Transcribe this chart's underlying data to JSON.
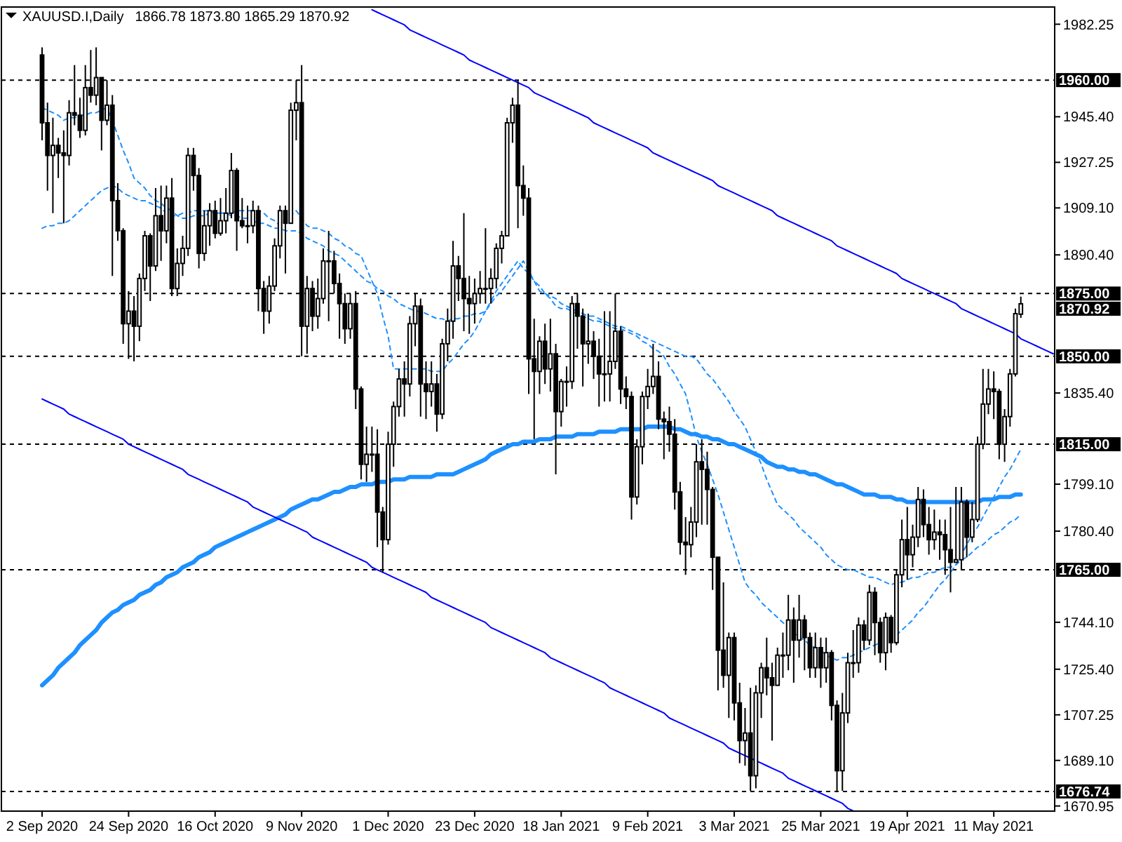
{
  "chart_data": {
    "type": "candlestick",
    "title": "XAUUSD.I,Daily",
    "subtitle": "1866.78 1873.80 1865.29 1870.92",
    "categories": [
      "2 Sep 2020",
      null,
      null,
      null,
      null,
      null,
      null,
      null,
      null,
      null,
      null,
      null,
      null,
      null,
      null,
      null,
      "24 Sep 2020",
      null,
      null,
      null,
      null,
      null,
      null,
      null,
      null,
      null,
      null,
      null,
      null,
      null,
      null,
      null,
      "16 Oct 2020",
      null,
      null,
      null,
      null,
      null,
      null,
      null,
      null,
      null,
      null,
      null,
      null,
      null,
      null,
      null,
      "9 Nov 2020",
      null,
      null,
      null,
      null,
      null,
      null,
      null,
      null,
      null,
      null,
      null,
      null,
      null,
      null,
      null,
      "1 Dec 2020",
      null,
      null,
      null,
      null,
      null,
      null,
      null,
      null,
      null,
      null,
      null,
      null,
      null,
      null,
      null,
      "23 Dec 2020",
      null,
      null,
      null,
      null,
      null,
      null,
      null,
      null,
      null,
      null,
      null,
      null,
      null,
      null,
      null,
      "18 Jan 2021",
      null,
      null,
      null,
      null,
      null,
      null,
      null,
      null,
      null,
      null,
      null,
      null,
      null,
      null,
      null,
      "9 Feb 2021",
      null,
      null,
      null,
      null,
      null,
      null,
      null,
      null,
      null,
      null,
      null,
      null,
      null,
      null,
      null,
      "3 Mar 2021",
      null,
      null,
      null,
      null,
      null,
      null,
      null,
      null,
      null,
      null,
      null,
      null,
      null,
      null,
      null,
      "25 Mar 2021",
      null,
      null,
      null,
      null,
      null,
      null,
      null,
      null,
      null,
      null,
      null,
      null,
      null,
      null,
      null,
      "19 Apr 2021",
      null,
      null,
      null,
      null,
      null,
      null,
      null,
      null,
      null,
      null,
      null,
      null,
      null,
      null,
      null,
      "11 May 2021",
      null,
      null,
      null,
      null,
      null,
      null,
      null,
      null,
      null,
      null,
      null
    ],
    "ohlc": [
      [
        1970,
        1973,
        1936,
        1943
      ],
      [
        1943,
        1951,
        1916,
        1930
      ],
      [
        1930,
        1945,
        1907,
        1934
      ],
      [
        1934,
        1937,
        1921,
        1931
      ],
      [
        1931,
        1940,
        1903,
        1930
      ],
      [
        1930,
        1952,
        1926,
        1947
      ],
      [
        1947,
        1966,
        1942,
        1946
      ],
      [
        1946,
        1953,
        1937,
        1940
      ],
      [
        1940,
        1966,
        1938,
        1957
      ],
      [
        1957,
        1972,
        1951,
        1954
      ],
      [
        1954,
        1973,
        1950,
        1961
      ],
      [
        1961,
        1961,
        1932,
        1944
      ],
      [
        1944,
        1960,
        1942,
        1950
      ],
      [
        1950,
        1954,
        1882,
        1912
      ],
      [
        1912,
        1919,
        1896,
        1900
      ],
      [
        1900,
        1901,
        1855,
        1863
      ],
      [
        1863,
        1876,
        1849,
        1868
      ],
      [
        1868,
        1874,
        1848,
        1862
      ],
      [
        1862,
        1883,
        1856,
        1881
      ],
      [
        1881,
        1900,
        1876,
        1898
      ],
      [
        1898,
        1899,
        1872,
        1886
      ],
      [
        1886,
        1917,
        1884,
        1906
      ],
      [
        1906,
        1918,
        1888,
        1900
      ],
      [
        1900,
        1918,
        1895,
        1913
      ],
      [
        1913,
        1921,
        1874,
        1877
      ],
      [
        1877,
        1893,
        1874,
        1887
      ],
      [
        1887,
        1898,
        1882,
        1893
      ],
      [
        1893,
        1933,
        1890,
        1930
      ],
      [
        1930,
        1933,
        1916,
        1922
      ],
      [
        1922,
        1925,
        1885,
        1891
      ],
      [
        1891,
        1908,
        1888,
        1902
      ],
      [
        1902,
        1911,
        1894,
        1908
      ],
      [
        1908,
        1912,
        1897,
        1899
      ],
      [
        1899,
        1913,
        1898,
        1904
      ],
      [
        1904,
        1917,
        1899,
        1907
      ],
      [
        1907,
        1931,
        1905,
        1924
      ],
      [
        1924,
        1925,
        1892,
        1904
      ],
      [
        1904,
        1913,
        1901,
        1902
      ],
      [
        1902,
        1910,
        1895,
        1902
      ],
      [
        1902,
        1912,
        1899,
        1908
      ],
      [
        1908,
        1910,
        1868,
        1877
      ],
      [
        1877,
        1880,
        1859,
        1868
      ],
      [
        1868,
        1882,
        1863,
        1878
      ],
      [
        1878,
        1897,
        1876,
        1894
      ],
      [
        1894,
        1910,
        1889,
        1908
      ],
      [
        1908,
        1910,
        1883,
        1903
      ],
      [
        1903,
        1951,
        1903,
        1948
      ],
      [
        1948,
        1960,
        1936,
        1951
      ],
      [
        1951,
        1966,
        1850,
        1862
      ],
      [
        1862,
        1882,
        1851,
        1877
      ],
      [
        1877,
        1880,
        1860,
        1866
      ],
      [
        1866,
        1881,
        1861,
        1873
      ],
      [
        1873,
        1893,
        1871,
        1888
      ],
      [
        1888,
        1900,
        1864,
        1888
      ],
      [
        1888,
        1892,
        1875,
        1879
      ],
      [
        1879,
        1883,
        1857,
        1871
      ],
      [
        1871,
        1875,
        1855,
        1861
      ],
      [
        1861,
        1875,
        1857,
        1871
      ],
      [
        1871,
        1876,
        1829,
        1837
      ],
      [
        1837,
        1838,
        1801,
        1807
      ],
      [
        1807,
        1822,
        1800,
        1811
      ],
      [
        1811,
        1822,
        1804,
        1811
      ],
      [
        1811,
        1821,
        1774,
        1788
      ],
      [
        1788,
        1790,
        1764,
        1777
      ],
      [
        1777,
        1820,
        1775,
        1815
      ],
      [
        1815,
        1832,
        1806,
        1830
      ],
      [
        1830,
        1845,
        1826,
        1841
      ],
      [
        1841,
        1848,
        1826,
        1839
      ],
      [
        1839,
        1866,
        1834,
        1863
      ],
      [
        1863,
        1875,
        1854,
        1870
      ],
      [
        1870,
        1873,
        1826,
        1839
      ],
      [
        1839,
        1848,
        1825,
        1836
      ],
      [
        1836,
        1848,
        1830,
        1839
      ],
      [
        1839,
        1843,
        1820,
        1827
      ],
      [
        1827,
        1857,
        1825,
        1855
      ],
      [
        1855,
        1869,
        1848,
        1864
      ],
      [
        1864,
        1896,
        1857,
        1886
      ],
      [
        1886,
        1890,
        1872,
        1881
      ],
      [
        1881,
        1907,
        1860,
        1873
      ],
      [
        1873,
        1882,
        1859,
        1871
      ],
      [
        1871,
        1881,
        1863,
        1875
      ],
      [
        1875,
        1884,
        1871,
        1877
      ],
      [
        1877,
        1901,
        1871,
        1877
      ],
      [
        1877,
        1885,
        1871,
        1881
      ],
      [
        1881,
        1895,
        1877,
        1893
      ],
      [
        1893,
        1900,
        1887,
        1898
      ],
      [
        1898,
        1945,
        1898,
        1943
      ],
      [
        1943,
        1953,
        1935,
        1950
      ],
      [
        1950,
        1960,
        1901,
        1918
      ],
      [
        1918,
        1926,
        1906,
        1913
      ],
      [
        1913,
        1917,
        1835,
        1849
      ],
      [
        1849,
        1865,
        1817,
        1844
      ],
      [
        1844,
        1858,
        1835,
        1856
      ],
      [
        1856,
        1863,
        1839,
        1845
      ],
      [
        1845,
        1865,
        1836,
        1851
      ],
      [
        1851,
        1855,
        1803,
        1828
      ],
      [
        1828,
        1841,
        1822,
        1840
      ],
      [
        1840,
        1846,
        1830,
        1840
      ],
      [
        1840,
        1874,
        1837,
        1871
      ],
      [
        1871,
        1875,
        1853,
        1866
      ],
      [
        1866,
        1869,
        1838,
        1855
      ],
      [
        1855,
        1867,
        1847,
        1856
      ],
      [
        1856,
        1860,
        1841,
        1850
      ],
      [
        1850,
        1857,
        1830,
        1843
      ],
      [
        1843,
        1868,
        1832,
        1843
      ],
      [
        1843,
        1868,
        1832,
        1848
      ],
      [
        1848,
        1875,
        1845,
        1860
      ],
      [
        1860,
        1862,
        1831,
        1837
      ],
      [
        1837,
        1842,
        1829,
        1834
      ],
      [
        1834,
        1836,
        1785,
        1794
      ],
      [
        1794,
        1817,
        1791,
        1814
      ],
      [
        1814,
        1836,
        1807,
        1834
      ],
      [
        1834,
        1845,
        1829,
        1838
      ],
      [
        1838,
        1855,
        1835,
        1842
      ],
      [
        1842,
        1848,
        1821,
        1825
      ],
      [
        1825,
        1828,
        1809,
        1824
      ],
      [
        1824,
        1830,
        1812,
        1819
      ],
      [
        1819,
        1825,
        1789,
        1796
      ],
      [
        1796,
        1800,
        1771,
        1776
      ],
      [
        1776,
        1786,
        1763,
        1775
      ],
      [
        1775,
        1790,
        1770,
        1784
      ],
      [
        1784,
        1815,
        1778,
        1808
      ],
      [
        1808,
        1817,
        1783,
        1805
      ],
      [
        1805,
        1812,
        1783,
        1797
      ],
      [
        1797,
        1798,
        1757,
        1770
      ],
      [
        1770,
        1770,
        1717,
        1733
      ],
      [
        1733,
        1760,
        1718,
        1723
      ],
      [
        1723,
        1740,
        1706,
        1738
      ],
      [
        1738,
        1740,
        1705,
        1712
      ],
      [
        1712,
        1720,
        1688,
        1697
      ],
      [
        1697,
        1710,
        1687,
        1700
      ],
      [
        1700,
        1718,
        1677,
        1683
      ],
      [
        1683,
        1719,
        1678,
        1716
      ],
      [
        1716,
        1728,
        1706,
        1726
      ],
      [
        1726,
        1738,
        1715,
        1722
      ],
      [
        1722,
        1728,
        1697,
        1719
      ],
      [
        1719,
        1734,
        1719,
        1731
      ],
      [
        1731,
        1740,
        1722,
        1731
      ],
      [
        1731,
        1755,
        1725,
        1745
      ],
      [
        1745,
        1750,
        1720,
        1737
      ],
      [
        1737,
        1755,
        1730,
        1745
      ],
      [
        1745,
        1747,
        1725,
        1738
      ],
      [
        1738,
        1740,
        1722,
        1726
      ],
      [
        1726,
        1740,
        1722,
        1734
      ],
      [
        1734,
        1738,
        1718,
        1726
      ],
      [
        1726,
        1738,
        1720,
        1732
      ],
      [
        1732,
        1733,
        1705,
        1711
      ],
      [
        1711,
        1713,
        1677,
        1685
      ],
      [
        1685,
        1716,
        1677,
        1708
      ],
      [
        1708,
        1732,
        1704,
        1728
      ],
      [
        1728,
        1741,
        1722,
        1728
      ],
      [
        1728,
        1746,
        1724,
        1743
      ],
      [
        1743,
        1745,
        1733,
        1737
      ],
      [
        1737,
        1759,
        1735,
        1756
      ],
      [
        1756,
        1758,
        1731,
        1744
      ],
      [
        1744,
        1746,
        1728,
        1732
      ],
      [
        1732,
        1748,
        1725,
        1746
      ],
      [
        1746,
        1747,
        1732,
        1736
      ],
      [
        1736,
        1765,
        1735,
        1763
      ],
      [
        1763,
        1785,
        1758,
        1777
      ],
      [
        1777,
        1790,
        1761,
        1771
      ],
      [
        1771,
        1783,
        1766,
        1778
      ],
      [
        1778,
        1798,
        1774,
        1793
      ],
      [
        1793,
        1797,
        1778,
        1783
      ],
      [
        1783,
        1790,
        1771,
        1777
      ],
      [
        1777,
        1789,
        1773,
        1780
      ],
      [
        1780,
        1785,
        1769,
        1779
      ],
      [
        1779,
        1785,
        1763,
        1773
      ],
      [
        1773,
        1790,
        1756,
        1768
      ],
      [
        1768,
        1798,
        1768,
        1769
      ],
      [
        1769,
        1798,
        1765,
        1792
      ],
      [
        1792,
        1793,
        1770,
        1778
      ],
      [
        1778,
        1792,
        1776,
        1785
      ],
      [
        1785,
        1818,
        1784,
        1815
      ],
      [
        1815,
        1845,
        1813,
        1831
      ],
      [
        1831,
        1845,
        1827,
        1837
      ],
      [
        1837,
        1844,
        1825,
        1836
      ],
      [
        1836,
        1837,
        1809,
        1815
      ],
      [
        1815,
        1829,
        1808,
        1826
      ],
      [
        1826,
        1845,
        1822,
        1843
      ],
      [
        1843,
        1869,
        1842,
        1867
      ],
      [
        1866.78,
        1873.8,
        1865.29,
        1870.92
      ],
      null,
      null,
      null,
      null,
      null,
      null
    ],
    "series": [
      {
        "type": "line",
        "color": "#1e90ff",
        "line_style": "solid",
        "values": [
          1719,
          1721,
          1723,
          1726,
          1728,
          1730,
          1732,
          1735,
          1737,
          1739,
          1741,
          1744,
          1746,
          1748,
          1749,
          1751,
          1752,
          1753,
          1755,
          1756,
          1757,
          1759,
          1760,
          1762,
          1763,
          1764,
          1766,
          1767,
          1768,
          1770,
          1771,
          1772,
          1774,
          1775,
          1776,
          1777,
          1778,
          1779,
          1780,
          1781,
          1782,
          1783,
          1784,
          1785,
          1786,
          1787,
          1789,
          1790,
          1791,
          1792,
          1793,
          1793,
          1794,
          1795,
          1796,
          1796,
          1797,
          1798,
          1798,
          1799,
          1799,
          1799,
          1800,
          1800,
          1800,
          1801,
          1801,
          1801,
          1802,
          1802,
          1802,
          1802,
          1802,
          1803,
          1803,
          1803,
          1803,
          1804,
          1805,
          1806,
          1807,
          1808,
          1809,
          1811,
          1812,
          1813,
          1814,
          1815,
          1815,
          1816,
          1816,
          1816,
          1817,
          1817,
          1817,
          1818,
          1818,
          1818,
          1818,
          1819,
          1819,
          1819,
          1819,
          1820,
          1820,
          1820,
          1820,
          1821,
          1821,
          1821,
          1821,
          1821,
          1822,
          1822,
          1822,
          1822,
          1822,
          1821,
          1821,
          1820,
          1819,
          1819,
          1818,
          1818,
          1817,
          1817,
          1816,
          1815,
          1815,
          1814,
          1813,
          1812,
          1811,
          1810,
          1808,
          1807,
          1806,
          1806,
          1805,
          1805,
          1804,
          1804,
          1803,
          1803,
          1802,
          1801,
          1800,
          1799,
          1799,
          1798,
          1797,
          1796,
          1795,
          1795,
          1795,
          1794,
          1794,
          1794,
          1793,
          1793,
          1792,
          1792,
          1792,
          1792,
          1792,
          1792,
          1792,
          1792,
          1792,
          1792,
          1792,
          1792,
          1792,
          1792,
          1793,
          1793,
          1793,
          1794,
          1794,
          1794,
          1795,
          1795,
          null,
          null,
          null,
          null,
          null,
          null
        ]
      },
      {
        "type": "line",
        "color": "#1e90ff",
        "line_style": "dashed",
        "values": [
          1949,
          1948,
          1947,
          1946,
          1944,
          1945,
          1945,
          1946,
          1946,
          1947,
          1947,
          1948,
          1949,
          1944,
          1938,
          1932,
          1927,
          1921,
          1919,
          1917,
          1914,
          1912,
          1911,
          1909,
          1908,
          1906,
          1905,
          1905,
          1906,
          1906,
          1906,
          1907,
          1907,
          1907,
          1907,
          1907,
          1908,
          1908,
          1908,
          1908,
          1908,
          1907,
          1905,
          1904,
          1902,
          1904,
          1906,
          1908,
          1905,
          1902,
          1901,
          1901,
          1900,
          1899,
          1897,
          1896,
          1894,
          1893,
          1891,
          1890,
          1885,
          1880,
          1875,
          1866,
          1858,
          1845,
          1845,
          1845,
          1845,
          1845,
          1845,
          1845,
          1844,
          1844,
          1844,
          1847,
          1849,
          1852,
          1855,
          1857,
          1860,
          1864,
          1868,
          1872,
          1876,
          1879,
          1882,
          1885,
          1888,
          1885,
          1883,
          1880,
          1878,
          1875,
          1873,
          1870,
          1869,
          1869,
          1868,
          1867,
          1866,
          1865,
          1864,
          1864,
          1863,
          1862,
          1861,
          1861,
          1860,
          1859,
          1858,
          1856,
          1855,
          1853,
          1852,
          1850,
          1846,
          1843,
          1839,
          1835,
          1827,
          1818,
          1812,
          1807,
          1801,
          1795,
          1788,
          1781,
          1774,
          1767,
          1760,
          1757,
          1755,
          1752,
          1750,
          1748,
          1746,
          1744,
          1742,
          1740,
          1738,
          1737,
          1735,
          1734,
          1733,
          1731,
          1730,
          1729,
          1730,
          1730,
          1731,
          1732,
          1733,
          1734,
          1735,
          1736,
          null,
          null,
          1739,
          1741,
          1743,
          1745,
          1748,
          1750,
          1753,
          1756,
          1759,
          1761,
          1764,
          1767,
          1771,
          1775,
          1779,
          1782,
          1786,
          1790,
          1794,
          1798,
          1802,
          1805,
          1809,
          1813,
          null,
          null,
          null,
          null,
          null,
          null
        ]
      },
      {
        "type": "line",
        "color": "#1e90ff",
        "line_style": "dashed",
        "values": [
          1901,
          1902,
          1902,
          1903,
          1903,
          1904,
          1906,
          1908,
          1910,
          1912,
          1914,
          1916,
          1917,
          1918,
          1917,
          1915,
          1914,
          1913,
          1912,
          1912,
          1911,
          1910,
          1909,
          1907,
          1906,
          1906,
          1907,
          1907,
          1908,
          1908,
          1908,
          1908,
          1907,
          1907,
          1907,
          1906,
          1906,
          1905,
          1905,
          1904,
          1903,
          1903,
          1902,
          1901,
          1901,
          1900,
          1900,
          1900,
          1899,
          1897,
          1896,
          1895,
          1894,
          1892,
          1891,
          1890,
          1888,
          1886,
          1884,
          1882,
          1880,
          1879,
          1877,
          1876,
          1874,
          1873,
          1871,
          1870,
          1869,
          1868,
          1868,
          1867,
          1866,
          1865,
          1865,
          1864,
          1865,
          1865,
          1866,
          1866,
          1867,
          1867,
          1868,
          1871,
          1874,
          1876,
          1879,
          1882,
          1885,
          1888,
          1884,
          1880,
          1876,
          1875,
          1874,
          1873,
          1871,
          1870,
          1869,
          1868,
          1867,
          1866,
          1866,
          1865,
          1864,
          1863,
          1862,
          1862,
          1861,
          1860,
          1859,
          1858,
          1857,
          1856,
          1855,
          1854,
          1853,
          1852,
          1851,
          1850,
          1850,
          1849,
          1846,
          1843,
          1841,
          1838,
          1835,
          1832,
          1828,
          1825,
          1822,
          1817,
          1812,
          1807,
          1801,
          1796,
          1791,
          1789,
          1787,
          1785,
          1782,
          1780,
          1778,
          1776,
          1774,
          1771,
          1769,
          1767,
          1766,
          1765,
          1765,
          1764,
          1763,
          1762,
          1762,
          1761,
          1760,
          1759,
          1760,
          1760,
          1761,
          1762,
          1762,
          1763,
          1764,
          1764,
          1765,
          1766,
          1766,
          1767,
          1769,
          1770,
          1772,
          1774,
          1775,
          1777,
          1779,
          1780,
          1782,
          1784,
          1785,
          1787,
          null,
          null,
          null,
          null,
          null,
          null
        ]
      },
      {
        "type": "line",
        "color": "#0000ff",
        "line_style": "solid",
        "values": [
          null,
          null,
          null,
          null,
          null,
          null,
          null,
          null,
          null,
          null,
          null,
          null,
          null,
          null,
          null,
          null,
          null,
          null,
          null,
          null,
          null,
          null,
          null,
          null,
          null,
          null,
          null,
          null,
          null,
          null,
          null,
          null,
          null,
          null,
          null,
          null,
          null,
          null,
          null,
          null,
          null,
          null,
          null,
          null,
          null,
          null,
          null,
          null,
          null,
          null,
          null,
          null,
          null,
          null,
          null,
          null,
          null,
          null,
          null,
          null,
          null,
          1988,
          1987,
          1986,
          1985,
          1984,
          1983,
          1982,
          1980,
          1979,
          1978,
          1977,
          1976,
          1975,
          1974,
          1973,
          1972,
          1971,
          1970,
          1968,
          1967,
          1966,
          1965,
          1964,
          1963,
          1962,
          1961,
          1960,
          1959,
          1958,
          1957,
          1955,
          1954,
          1953,
          1952,
          1951,
          1950,
          1949,
          1948,
          1947,
          1946,
          1945,
          1943,
          1942,
          1941,
          1940,
          1939,
          1938,
          1937,
          1936,
          1935,
          1934,
          1933,
          1931,
          1930,
          1929,
          1928,
          1927,
          1926,
          1925,
          1924,
          1923,
          1922,
          1921,
          1920,
          1918,
          1917,
          1916,
          1915,
          1914,
          1913,
          1912,
          1911,
          1910,
          1909,
          1908,
          1906,
          1905,
          1904,
          1903,
          1902,
          1901,
          1900,
          1899,
          1898,
          1897,
          1896,
          1894,
          1893,
          1892,
          1891,
          1890,
          1889,
          1888,
          1887,
          1886,
          1885,
          1884,
          1883,
          1881,
          1880,
          1879,
          1878,
          1877,
          1876,
          1875,
          1874,
          1873,
          1872,
          1871,
          1869,
          1868,
          1867,
          1866,
          1865,
          1864,
          1863,
          1862,
          1861,
          1860,
          1859,
          1857,
          1856,
          1855,
          1854,
          1853,
          1852,
          1851
        ]
      },
      {
        "type": "line",
        "color": "#0000ff",
        "line_style": "solid",
        "values": [
          1833,
          1832,
          1831,
          1830,
          1829,
          1827,
          1826,
          1825,
          1824,
          1823,
          1822,
          1821,
          1820,
          1819,
          1818,
          1817,
          1815,
          1814,
          1813,
          1812,
          1811,
          1810,
          1809,
          1808,
          1807,
          1806,
          1805,
          1803,
          1802,
          1801,
          1800,
          1799,
          1798,
          1797,
          1796,
          1795,
          1794,
          1793,
          1792,
          1790,
          1789,
          1788,
          1787,
          1786,
          1785,
          1784,
          1783,
          1782,
          1781,
          1780,
          1778,
          1777,
          1776,
          1775,
          1774,
          1773,
          1772,
          1771,
          1770,
          1769,
          1768,
          1766,
          1765,
          1764,
          1763,
          1762,
          1761,
          1760,
          1759,
          1758,
          1757,
          1756,
          1754,
          1753,
          1752,
          1751,
          1750,
          1749,
          1748,
          1747,
          1746,
          1745,
          1744,
          1742,
          1741,
          1740,
          1739,
          1738,
          1737,
          1736,
          1735,
          1734,
          1733,
          1732,
          1730,
          1729,
          1728,
          1727,
          1726,
          1725,
          1724,
          1723,
          1722,
          1721,
          1720,
          1718,
          1717,
          1716,
          1715,
          1714,
          1713,
          1712,
          1711,
          1710,
          1709,
          1708,
          1706,
          1705,
          1704,
          1703,
          1702,
          1701,
          1700,
          1699,
          1698,
          1697,
          1696,
          1694,
          1693,
          1692,
          1691,
          1690,
          1689,
          1688,
          1687,
          1686,
          1685,
          1684,
          1682,
          1681,
          1680,
          1679,
          1678,
          1677,
          1676,
          1675,
          1674,
          1673,
          1672,
          1670,
          1669,
          null,
          null,
          null,
          null,
          null,
          null,
          null,
          null,
          null,
          null,
          null,
          null,
          null,
          null,
          null,
          null,
          null,
          null,
          null,
          null,
          null,
          null,
          null,
          null,
          null,
          null,
          null,
          null,
          null,
          null,
          null,
          null,
          null,
          null,
          null,
          null,
          null
        ]
      }
    ],
    "ylim": [
      1668.9,
      1989.1
    ],
    "yticks": [
      {
        "value": 1982.25,
        "label": "1982.25"
      },
      {
        "value": 1945.4,
        "label": "1945.40"
      },
      {
        "value": 1927.25,
        "label": "1927.25"
      },
      {
        "value": 1909.1,
        "label": "1909.10"
      },
      {
        "value": 1890.4,
        "label": "1890.40"
      },
      {
        "value": 1835.4,
        "label": "1835.40"
      },
      {
        "value": 1799.1,
        "label": "1799.10"
      },
      {
        "value": 1780.4,
        "label": "1780.40"
      },
      {
        "value": 1744.1,
        "label": "1744.10"
      },
      {
        "value": 1725.4,
        "label": "1725.40"
      },
      {
        "value": 1707.25,
        "label": "1707.25"
      },
      {
        "value": 1689.1,
        "label": "1689.10"
      },
      {
        "value": 1670.95,
        "label": "1670.95"
      }
    ],
    "ref_lines": [
      {
        "axis": "y",
        "value": 1960,
        "label": "1960.00",
        "color": "#000000",
        "line_style": "dashed"
      },
      {
        "axis": "y",
        "value": 1875,
        "label": "1875.00",
        "color": "#000000",
        "line_style": "dashed"
      },
      {
        "axis": "y",
        "value": 1850,
        "label": "1850.00",
        "color": "#000000",
        "line_style": "dashed"
      },
      {
        "axis": "y",
        "value": 1815,
        "label": "1815.00",
        "color": "#000000",
        "line_style": "dashed"
      },
      {
        "axis": "y",
        "value": 1765,
        "label": "1765.00",
        "color": "#000000",
        "line_style": "dashed"
      },
      {
        "axis": "y",
        "value": 1676.74,
        "label": "1676.74",
        "color": "#000000",
        "line_style": "dashed"
      }
    ],
    "annotations": [
      "1870.92"
    ]
  }
}
